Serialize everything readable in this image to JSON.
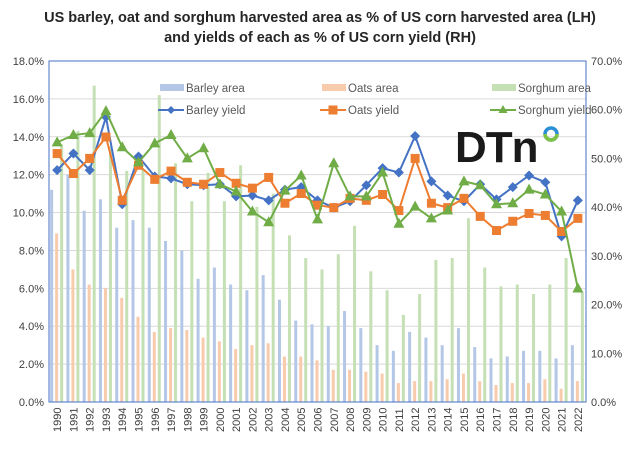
{
  "chart_data": {
    "type": "bar+line",
    "title": "US barley, oat and sorghum harvested area as % of US corn harvested area (LH)",
    "title_line2": "and yields of each as % of US corn yield (RH)",
    "categories": [
      "1990",
      "1991",
      "1992",
      "1993",
      "1994",
      "1995",
      "1996",
      "1997",
      "1998",
      "1999",
      "2000",
      "2001",
      "2002",
      "2003",
      "2004",
      "2005",
      "2006",
      "2007",
      "2008",
      "2009",
      "2010",
      "2011",
      "2012",
      "2013",
      "2014",
      "2015",
      "2016",
      "2017",
      "2018",
      "2019",
      "2020",
      "2021",
      "2022"
    ],
    "left_axis": {
      "range": [
        0,
        18
      ],
      "ticks": [
        "0.0%",
        "2.0%",
        "4.0%",
        "6.0%",
        "8.0%",
        "10.0%",
        "12.0%",
        "14.0%",
        "16.0%",
        "18.0%"
      ]
    },
    "right_axis": {
      "range": [
        0,
        70
      ],
      "ticks": [
        "0.0%",
        "10.0%",
        "20.0%",
        "30.0%",
        "40.0%",
        "50.0%",
        "60.0%",
        "70.0%"
      ]
    },
    "grid": true,
    "legend_placement": "top-inside",
    "bar_series": [
      {
        "name": "Barley area",
        "axis": "left",
        "color": "#b4c7e7",
        "values": [
          11.2,
          12.0,
          10.1,
          10.7,
          9.2,
          9.6,
          9.2,
          8.5,
          8.0,
          6.5,
          7.1,
          6.2,
          5.9,
          6.7,
          5.4,
          4.3,
          4.1,
          4.0,
          4.8,
          3.9,
          3.0,
          2.7,
          3.7,
          3.4,
          3.0,
          3.9,
          2.9,
          2.3,
          2.4,
          2.7,
          2.7,
          2.3,
          3.0
        ]
      },
      {
        "name": "Oats area",
        "axis": "left",
        "color": "#f8cbad",
        "values": [
          8.9,
          7.0,
          6.2,
          6.0,
          5.5,
          4.5,
          3.7,
          3.9,
          3.8,
          3.4,
          3.2,
          2.8,
          3.0,
          3.1,
          2.4,
          2.4,
          2.2,
          1.7,
          1.7,
          1.6,
          1.5,
          1.0,
          1.1,
          1.1,
          1.2,
          1.5,
          1.1,
          0.9,
          1.0,
          1.0,
          1.2,
          0.7,
          1.1
        ]
      },
      {
        "name": "Sorghum area",
        "axis": "left",
        "color": "#c5e0b4",
        "values": [
          13.6,
          14.3,
          16.7,
          13.5,
          12.2,
          12.3,
          16.2,
          12.6,
          10.6,
          12.1,
          10.6,
          12.5,
          10.3,
          11.0,
          8.8,
          7.6,
          7.0,
          7.8,
          9.3,
          6.9,
          5.9,
          4.6,
          5.7,
          7.5,
          7.6,
          9.7,
          7.1,
          6.1,
          6.2,
          5.7,
          6.2,
          7.6,
          5.8
        ]
      }
    ],
    "line_series": [
      {
        "name": "Barley yield",
        "axis": "right",
        "color": "#4472c4",
        "marker": "diamond",
        "values": [
          47.6,
          51.0,
          47.6,
          58.5,
          40.6,
          50.4,
          46.3,
          45.9,
          44.7,
          44.5,
          44.7,
          42.2,
          42.4,
          41.4,
          43.6,
          44.1,
          41.4,
          39.9,
          41.2,
          44.5,
          48.0,
          47.1,
          54.6,
          45.3,
          42.4,
          41.2,
          44.7,
          41.6,
          44.1,
          46.5,
          45.1,
          34.0,
          41.4
        ]
      },
      {
        "name": "Oats yield",
        "axis": "right",
        "color": "#ed7d31",
        "marker": "square",
        "values": [
          51.0,
          46.9,
          50.0,
          54.4,
          41.4,
          48.6,
          45.7,
          47.4,
          45.1,
          44.7,
          47.1,
          44.9,
          43.9,
          46.1,
          40.8,
          42.8,
          40.4,
          39.9,
          41.8,
          41.4,
          42.6,
          39.3,
          50.0,
          40.8,
          39.9,
          41.8,
          38.1,
          35.2,
          37.1,
          38.7,
          38.3,
          35.0,
          37.7
        ]
      },
      {
        "name": "Sorghum yield",
        "axis": "right",
        "color": "#70ad47",
        "marker": "triangle",
        "values": [
          53.3,
          54.8,
          55.2,
          59.7,
          52.3,
          49.2,
          53.1,
          54.8,
          50.0,
          52.1,
          44.7,
          43.2,
          39.1,
          36.9,
          43.4,
          46.5,
          37.5,
          49.0,
          42.2,
          42.2,
          47.1,
          36.6,
          40.1,
          37.7,
          39.3,
          45.3,
          44.5,
          40.6,
          40.8,
          43.6,
          42.6,
          39.1,
          23.3
        ]
      }
    ]
  },
  "logo": {
    "text": "DTN"
  }
}
